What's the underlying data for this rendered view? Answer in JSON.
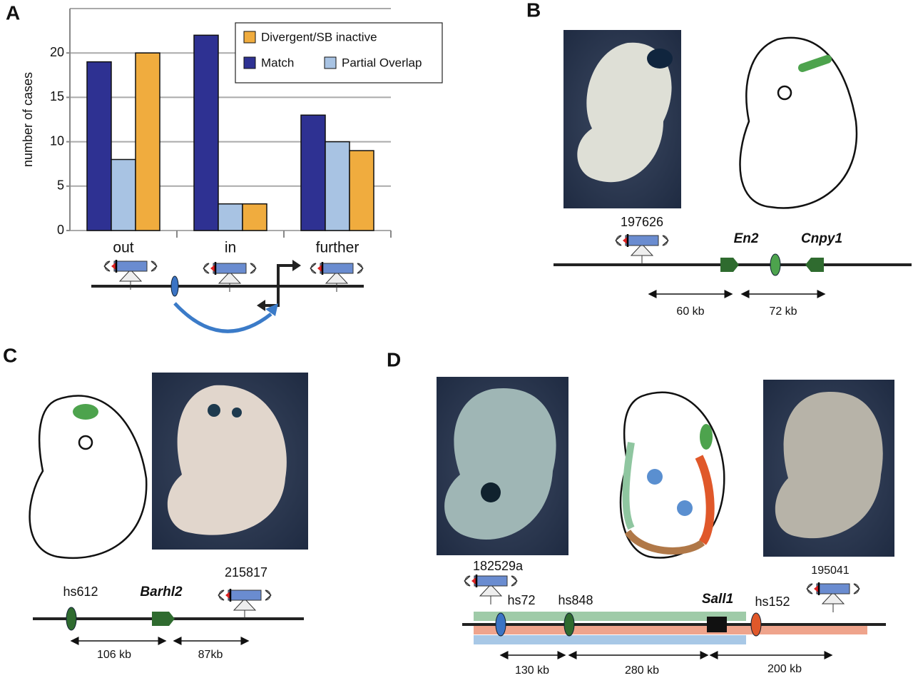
{
  "chart_data": {
    "type": "bar",
    "y_label": "number of cases",
    "categories": [
      "out",
      "in",
      "further"
    ],
    "series": [
      {
        "name": "Match",
        "color": "#2e3192",
        "values": [
          19,
          22,
          13
        ]
      },
      {
        "name": "Partial Overlap",
        "color": "#a8c3e3",
        "values": [
          8,
          3,
          10
        ]
      },
      {
        "name": "Divergent/SB inactive",
        "color": "#f0ac3e",
        "values": [
          20,
          3,
          9
        ]
      }
    ],
    "ylim": [
      0,
      25
    ],
    "yticks": [
      0,
      5,
      10,
      15,
      20
    ],
    "grid": true,
    "legend": "top-right"
  },
  "panels": {
    "A": {
      "letter": "A"
    },
    "B": {
      "letter": "B",
      "construct": "197626",
      "genes": [
        "En2",
        "Cnpy1"
      ],
      "distances": [
        "60 kb",
        "72 kb"
      ]
    },
    "C": {
      "letter": "C",
      "enhancer": "hs612",
      "gene": "Barhl2",
      "construct": "215817",
      "distances": [
        "106 kb",
        "87kb"
      ]
    },
    "D": {
      "letter": "D",
      "constructs": [
        "182529a",
        "195041"
      ],
      "enhancers": [
        "hs72",
        "hs848",
        "hs152"
      ],
      "gene": "Sall1",
      "distances": [
        "130 kb",
        "280 kb",
        "200 kb"
      ]
    }
  }
}
